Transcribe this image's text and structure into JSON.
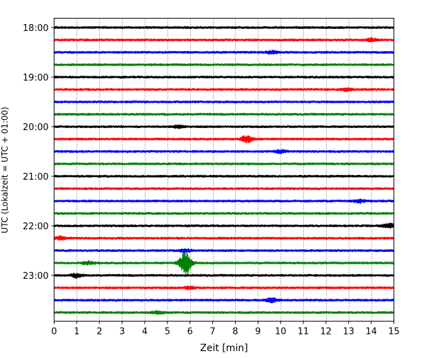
{
  "chart_data": {
    "type": "line",
    "title": "",
    "xlabel": "Zeit  [min]",
    "ylabel": "UTC (Lokalzeit = UTC + 01:00)",
    "xlim": [
      0,
      15
    ],
    "x_ticks": [
      0,
      1,
      2,
      3,
      4,
      5,
      6,
      7,
      8,
      9,
      10,
      11,
      12,
      13,
      14,
      15
    ],
    "x_tick_labels": [
      "0",
      "1",
      "2",
      "3",
      "4",
      "5",
      "6",
      "7",
      "8",
      "9",
      "10",
      "11",
      "12",
      "13",
      "14",
      "15"
    ],
    "y_tick_labels": [
      "18:00",
      "19:00",
      "20:00",
      "21:00",
      "22:00",
      "23:00"
    ],
    "traces_per_hour": 4,
    "trace_colors": [
      "#000000",
      "#ff0000",
      "#0000ff",
      "#008000"
    ],
    "vertical_grid": "dotted",
    "traces": [
      {
        "start": "18:00",
        "color": "#000000",
        "events": []
      },
      {
        "start": "18:15",
        "color": "#ff0000",
        "events": [
          {
            "minute": 14.0,
            "amplitude": 2.0
          }
        ]
      },
      {
        "start": "18:30",
        "color": "#0000ff",
        "events": [
          {
            "minute": 9.6,
            "amplitude": 2.0
          }
        ]
      },
      {
        "start": "18:45",
        "color": "#008000",
        "events": []
      },
      {
        "start": "19:00",
        "color": "#000000",
        "events": []
      },
      {
        "start": "19:15",
        "color": "#ff0000",
        "events": [
          {
            "minute": 12.9,
            "amplitude": 2.0
          }
        ]
      },
      {
        "start": "19:30",
        "color": "#0000ff",
        "events": []
      },
      {
        "start": "19:45",
        "color": "#008000",
        "events": []
      },
      {
        "start": "20:00",
        "color": "#000000",
        "events": [
          {
            "minute": 5.5,
            "amplitude": 2.0
          }
        ]
      },
      {
        "start": "20:15",
        "color": "#ff0000",
        "events": [
          {
            "minute": 8.5,
            "amplitude": 5.0
          }
        ]
      },
      {
        "start": "20:30",
        "color": "#0000ff",
        "events": [
          {
            "minute": 10.0,
            "amplitude": 2.0
          }
        ]
      },
      {
        "start": "20:45",
        "color": "#008000",
        "events": []
      },
      {
        "start": "21:00",
        "color": "#000000",
        "events": []
      },
      {
        "start": "21:15",
        "color": "#ff0000",
        "events": []
      },
      {
        "start": "21:30",
        "color": "#0000ff",
        "events": [
          {
            "minute": 13.5,
            "amplitude": 2.0
          }
        ]
      },
      {
        "start": "21:45",
        "color": "#008000",
        "events": []
      },
      {
        "start": "22:00",
        "color": "#000000",
        "events": [
          {
            "minute": 14.8,
            "amplitude": 3.0
          }
        ]
      },
      {
        "start": "22:15",
        "color": "#ff0000",
        "events": [
          {
            "minute": 0.3,
            "amplitude": 2.0
          }
        ]
      },
      {
        "start": "22:30",
        "color": "#0000ff",
        "events": [
          {
            "minute": 5.8,
            "amplitude": 2.5
          }
        ]
      },
      {
        "start": "22:45",
        "color": "#008000",
        "events": [
          {
            "minute": 5.8,
            "amplitude": 17.0
          },
          {
            "minute": 1.5,
            "amplitude": 2.0
          }
        ]
      },
      {
        "start": "23:00",
        "color": "#000000",
        "events": [
          {
            "minute": 1.0,
            "amplitude": 2.5
          }
        ]
      },
      {
        "start": "23:15",
        "color": "#ff0000",
        "events": [
          {
            "minute": 6.0,
            "amplitude": 2.0
          }
        ]
      },
      {
        "start": "23:30",
        "color": "#0000ff",
        "events": [
          {
            "minute": 9.6,
            "amplitude": 3.0
          }
        ]
      },
      {
        "start": "23:45",
        "color": "#008000",
        "events": [
          {
            "minute": 4.6,
            "amplitude": 2.0
          }
        ]
      }
    ]
  }
}
